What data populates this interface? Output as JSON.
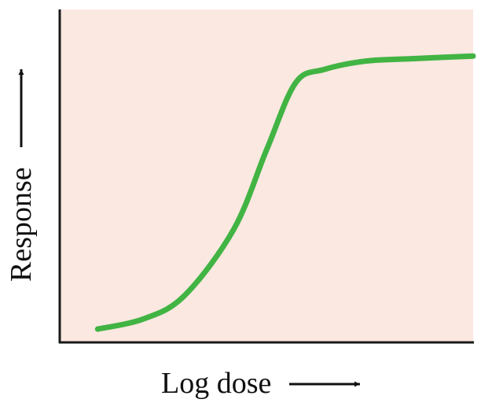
{
  "chart_data": {
    "type": "line",
    "xlabel": "Log dose",
    "ylabel": "Response",
    "axis_arrows": true,
    "ticks": false,
    "grid": false,
    "xlim": [
      0,
      10
    ],
    "ylim": [
      0,
      10
    ],
    "series": [
      {
        "x": [
          0.9,
          2.0,
          3.0,
          4.2,
          5.0,
          5.7,
          6.4,
          7.4,
          8.5,
          9.4,
          10.0
        ],
        "y": [
          0.4,
          0.7,
          1.4,
          3.4,
          5.8,
          7.8,
          8.2,
          8.45,
          8.52,
          8.57,
          8.6
        ]
      }
    ],
    "colors": {
      "plot_background": "#fbe8e1",
      "line": "#41b443",
      "axis": "#1a1a1a",
      "text": "#111111"
    }
  }
}
